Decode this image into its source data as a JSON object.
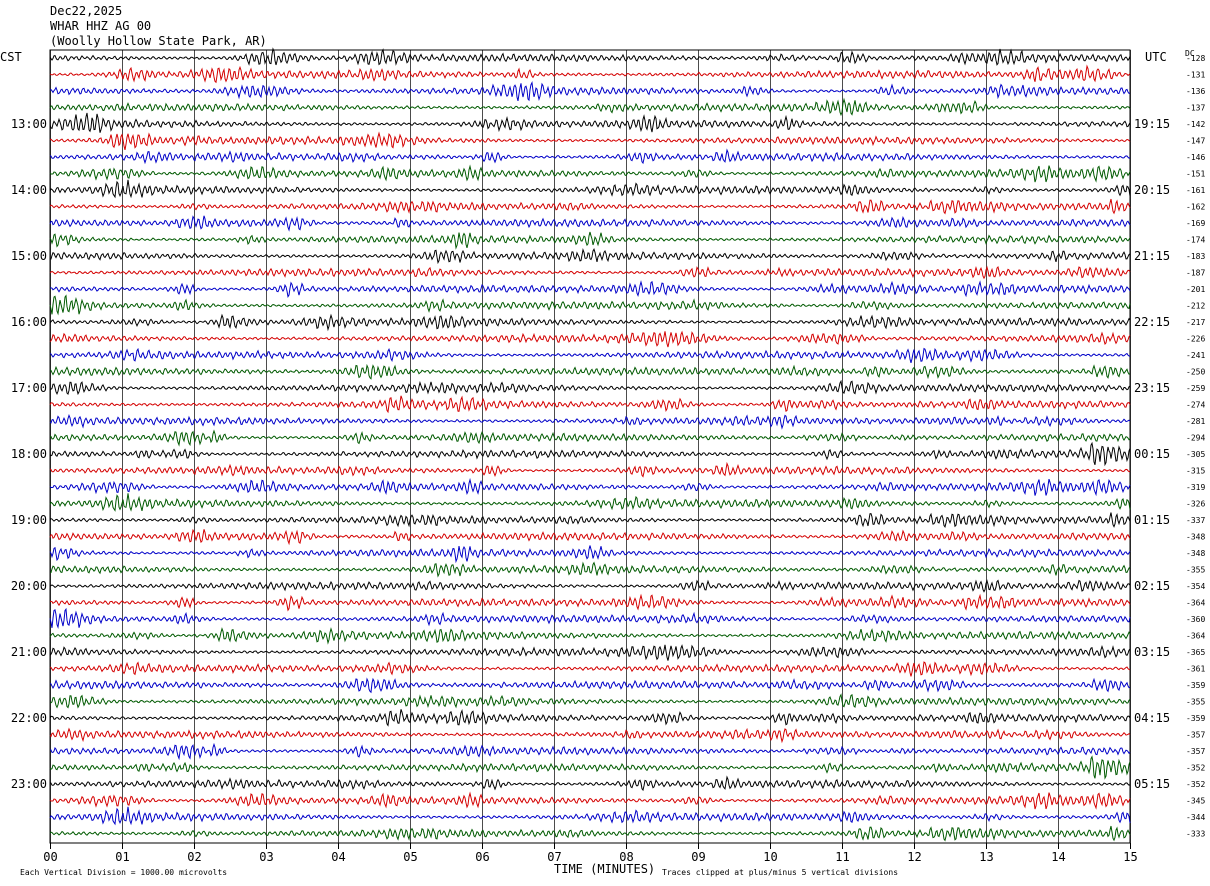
{
  "header": {
    "date": "Dec22,2025",
    "station": "WHAR HHZ AG 00",
    "location": "(Woolly Hollow State Park, AR)"
  },
  "left_axis_label": "CST",
  "right_axis_label": "UTC",
  "dc_label": "DC",
  "footer": {
    "x_axis_title": "TIME (MINUTES)",
    "scale_note": "Each Vertical Division = 1000.00 microvolts",
    "clip_note": "Traces clipped at plus/minus 5 vertical divisions"
  },
  "colors": {
    "traces": [
      "#000000",
      "#d40000",
      "#0000c8",
      "#005a00"
    ],
    "grid": "#000000"
  },
  "chart_data": {
    "type": "line",
    "title": "WHAR HHZ AG 00 helicorder",
    "xlabel": "TIME (MINUTES)",
    "x_ticks": [
      "00",
      "01",
      "02",
      "03",
      "04",
      "05",
      "06",
      "07",
      "08",
      "09",
      "10",
      "11",
      "12",
      "13",
      "14",
      "15"
    ],
    "xlim": [
      0,
      15
    ],
    "rows_per_hour": 4,
    "left_hour_labels": [
      "13:00",
      "14:00",
      "15:00",
      "16:00",
      "17:00",
      "18:00",
      "19:00",
      "20:00",
      "21:00",
      "22:00",
      "23:00"
    ],
    "right_hour_labels": [
      "19:15",
      "20:15",
      "21:15",
      "22:15",
      "23:15",
      "00:15",
      "01:15",
      "02:15",
      "03:15",
      "04:15",
      "05:15"
    ],
    "dc_offsets": [
      -128,
      -131,
      -136,
      -137,
      -142,
      -147,
      -146,
      -151,
      -161,
      -162,
      -169,
      -174,
      -183,
      -187,
      -201,
      -212,
      -217,
      -226,
      -241,
      -250,
      -259,
      -274,
      -281,
      -294,
      -305,
      -315,
      -319,
      -326,
      -337,
      -348,
      -348,
      -355,
      -354,
      -364,
      -360,
      -364,
      -365,
      -361,
      -359,
      -355,
      -359,
      -357,
      -357,
      -352,
      -352,
      -345,
      -344,
      -333
    ],
    "vertical_division_microvolts": 1000.0,
    "clip_divisions": 5
  }
}
